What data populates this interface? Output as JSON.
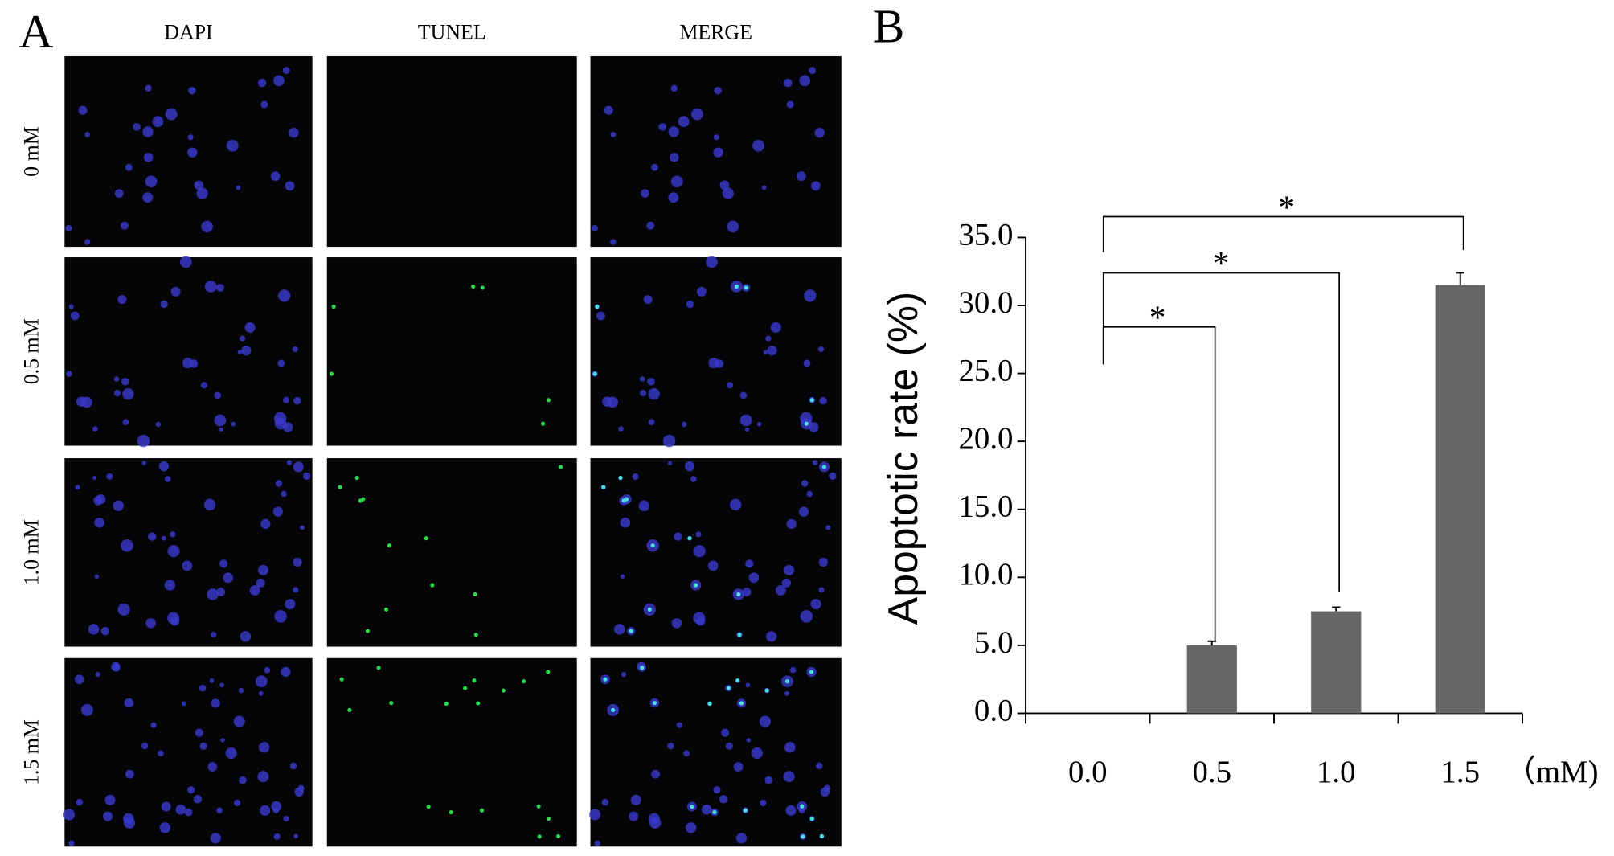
{
  "panels": {
    "a": "A",
    "b": "B"
  },
  "image_columns": [
    "DAPI",
    "TUNEL",
    "MERGE"
  ],
  "image_rows": [
    "0 mM",
    "0.5 mM",
    "1.0 mM",
    "1.5 mM"
  ],
  "chart_data": {
    "type": "bar",
    "y_label": "Apoptotic rate (%)",
    "x_unit": "（mM)",
    "categories": [
      "0.0",
      "0.5",
      "1.0",
      "1.5"
    ],
    "values": [
      0,
      5.0,
      7.5,
      31.5
    ],
    "errors": [
      0,
      0.3,
      0.3,
      0.9
    ],
    "color": "#666666",
    "ylim": [
      0,
      35
    ],
    "yticks": [
      {
        "value": 0,
        "label": "0.0"
      },
      {
        "value": 5,
        "label": "5.0"
      },
      {
        "value": 10,
        "label": "10.0"
      },
      {
        "value": 15,
        "label": "15.0"
      },
      {
        "value": 20,
        "label": "20.0"
      },
      {
        "value": 25,
        "label": "25.0"
      },
      {
        "value": 30,
        "label": "30.0"
      },
      {
        "value": 35,
        "label": "35.0"
      }
    ],
    "annotations": [
      "*",
      "*",
      "*"
    ]
  }
}
